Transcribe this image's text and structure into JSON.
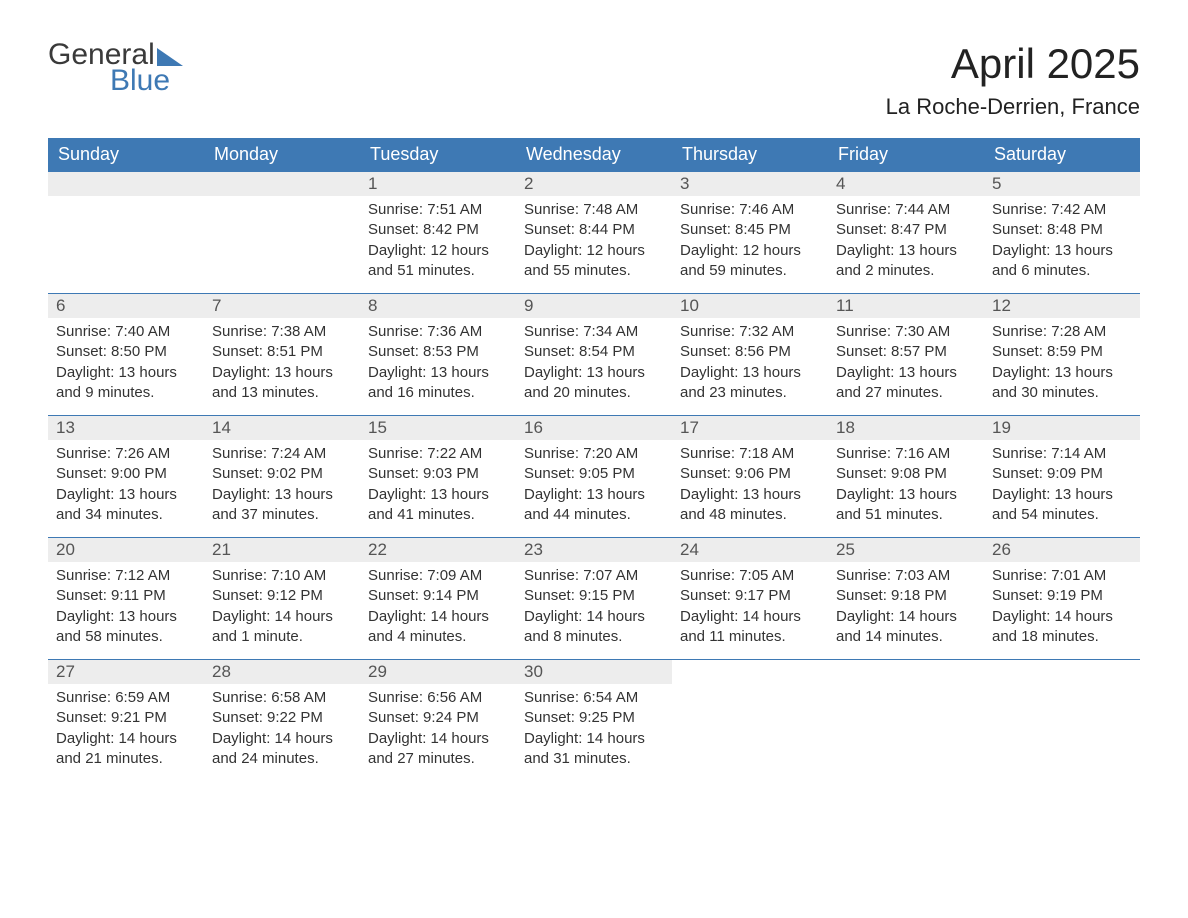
{
  "logo": {
    "word1": "General",
    "word2": "Blue"
  },
  "title": "April 2025",
  "location": "La Roche-Derrien, France",
  "colors": {
    "header_bg": "#3e79b4",
    "header_text": "#ffffff",
    "daynum_bg": "#ededed",
    "row_border": "#3e79b4",
    "logo_accent": "#3e79b4"
  },
  "day_headers": [
    "Sunday",
    "Monday",
    "Tuesday",
    "Wednesday",
    "Thursday",
    "Friday",
    "Saturday"
  ],
  "weeks": [
    [
      null,
      null,
      {
        "n": "1",
        "sr": "Sunrise: 7:51 AM",
        "ss": "Sunset: 8:42 PM",
        "d1": "Daylight: 12 hours",
        "d2": "and 51 minutes."
      },
      {
        "n": "2",
        "sr": "Sunrise: 7:48 AM",
        "ss": "Sunset: 8:44 PM",
        "d1": "Daylight: 12 hours",
        "d2": "and 55 minutes."
      },
      {
        "n": "3",
        "sr": "Sunrise: 7:46 AM",
        "ss": "Sunset: 8:45 PM",
        "d1": "Daylight: 12 hours",
        "d2": "and 59 minutes."
      },
      {
        "n": "4",
        "sr": "Sunrise: 7:44 AM",
        "ss": "Sunset: 8:47 PM",
        "d1": "Daylight: 13 hours",
        "d2": "and 2 minutes."
      },
      {
        "n": "5",
        "sr": "Sunrise: 7:42 AM",
        "ss": "Sunset: 8:48 PM",
        "d1": "Daylight: 13 hours",
        "d2": "and 6 minutes."
      }
    ],
    [
      {
        "n": "6",
        "sr": "Sunrise: 7:40 AM",
        "ss": "Sunset: 8:50 PM",
        "d1": "Daylight: 13 hours",
        "d2": "and 9 minutes."
      },
      {
        "n": "7",
        "sr": "Sunrise: 7:38 AM",
        "ss": "Sunset: 8:51 PM",
        "d1": "Daylight: 13 hours",
        "d2": "and 13 minutes."
      },
      {
        "n": "8",
        "sr": "Sunrise: 7:36 AM",
        "ss": "Sunset: 8:53 PM",
        "d1": "Daylight: 13 hours",
        "d2": "and 16 minutes."
      },
      {
        "n": "9",
        "sr": "Sunrise: 7:34 AM",
        "ss": "Sunset: 8:54 PM",
        "d1": "Daylight: 13 hours",
        "d2": "and 20 minutes."
      },
      {
        "n": "10",
        "sr": "Sunrise: 7:32 AM",
        "ss": "Sunset: 8:56 PM",
        "d1": "Daylight: 13 hours",
        "d2": "and 23 minutes."
      },
      {
        "n": "11",
        "sr": "Sunrise: 7:30 AM",
        "ss": "Sunset: 8:57 PM",
        "d1": "Daylight: 13 hours",
        "d2": "and 27 minutes."
      },
      {
        "n": "12",
        "sr": "Sunrise: 7:28 AM",
        "ss": "Sunset: 8:59 PM",
        "d1": "Daylight: 13 hours",
        "d2": "and 30 minutes."
      }
    ],
    [
      {
        "n": "13",
        "sr": "Sunrise: 7:26 AM",
        "ss": "Sunset: 9:00 PM",
        "d1": "Daylight: 13 hours",
        "d2": "and 34 minutes."
      },
      {
        "n": "14",
        "sr": "Sunrise: 7:24 AM",
        "ss": "Sunset: 9:02 PM",
        "d1": "Daylight: 13 hours",
        "d2": "and 37 minutes."
      },
      {
        "n": "15",
        "sr": "Sunrise: 7:22 AM",
        "ss": "Sunset: 9:03 PM",
        "d1": "Daylight: 13 hours",
        "d2": "and 41 minutes."
      },
      {
        "n": "16",
        "sr": "Sunrise: 7:20 AM",
        "ss": "Sunset: 9:05 PM",
        "d1": "Daylight: 13 hours",
        "d2": "and 44 minutes."
      },
      {
        "n": "17",
        "sr": "Sunrise: 7:18 AM",
        "ss": "Sunset: 9:06 PM",
        "d1": "Daylight: 13 hours",
        "d2": "and 48 minutes."
      },
      {
        "n": "18",
        "sr": "Sunrise: 7:16 AM",
        "ss": "Sunset: 9:08 PM",
        "d1": "Daylight: 13 hours",
        "d2": "and 51 minutes."
      },
      {
        "n": "19",
        "sr": "Sunrise: 7:14 AM",
        "ss": "Sunset: 9:09 PM",
        "d1": "Daylight: 13 hours",
        "d2": "and 54 minutes."
      }
    ],
    [
      {
        "n": "20",
        "sr": "Sunrise: 7:12 AM",
        "ss": "Sunset: 9:11 PM",
        "d1": "Daylight: 13 hours",
        "d2": "and 58 minutes."
      },
      {
        "n": "21",
        "sr": "Sunrise: 7:10 AM",
        "ss": "Sunset: 9:12 PM",
        "d1": "Daylight: 14 hours",
        "d2": "and 1 minute."
      },
      {
        "n": "22",
        "sr": "Sunrise: 7:09 AM",
        "ss": "Sunset: 9:14 PM",
        "d1": "Daylight: 14 hours",
        "d2": "and 4 minutes."
      },
      {
        "n": "23",
        "sr": "Sunrise: 7:07 AM",
        "ss": "Sunset: 9:15 PM",
        "d1": "Daylight: 14 hours",
        "d2": "and 8 minutes."
      },
      {
        "n": "24",
        "sr": "Sunrise: 7:05 AM",
        "ss": "Sunset: 9:17 PM",
        "d1": "Daylight: 14 hours",
        "d2": "and 11 minutes."
      },
      {
        "n": "25",
        "sr": "Sunrise: 7:03 AM",
        "ss": "Sunset: 9:18 PM",
        "d1": "Daylight: 14 hours",
        "d2": "and 14 minutes."
      },
      {
        "n": "26",
        "sr": "Sunrise: 7:01 AM",
        "ss": "Sunset: 9:19 PM",
        "d1": "Daylight: 14 hours",
        "d2": "and 18 minutes."
      }
    ],
    [
      {
        "n": "27",
        "sr": "Sunrise: 6:59 AM",
        "ss": "Sunset: 9:21 PM",
        "d1": "Daylight: 14 hours",
        "d2": "and 21 minutes."
      },
      {
        "n": "28",
        "sr": "Sunrise: 6:58 AM",
        "ss": "Sunset: 9:22 PM",
        "d1": "Daylight: 14 hours",
        "d2": "and 24 minutes."
      },
      {
        "n": "29",
        "sr": "Sunrise: 6:56 AM",
        "ss": "Sunset: 9:24 PM",
        "d1": "Daylight: 14 hours",
        "d2": "and 27 minutes."
      },
      {
        "n": "30",
        "sr": "Sunrise: 6:54 AM",
        "ss": "Sunset: 9:25 PM",
        "d1": "Daylight: 14 hours",
        "d2": "and 31 minutes."
      },
      null,
      null,
      null
    ]
  ]
}
